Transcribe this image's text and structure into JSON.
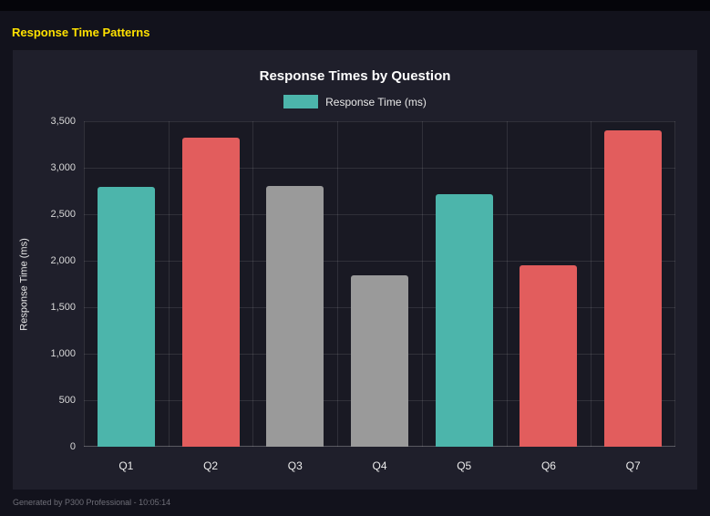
{
  "page": {
    "heading": "Response Time Patterns",
    "footer": "Generated by P300 Professional - 10:05:14"
  },
  "chart_data": {
    "type": "bar",
    "title": "Response Times by Question",
    "legend_label": "Response Time (ms)",
    "legend_color": "#4cb5ab",
    "legend_position": "top",
    "categories": [
      "Q1",
      "Q2",
      "Q3",
      "Q4",
      "Q5",
      "Q6",
      "Q7"
    ],
    "values": [
      2790,
      3320,
      2800,
      1840,
      2720,
      1950,
      3400
    ],
    "bar_colors": [
      "#4cb5ab",
      "#e25d5d",
      "#9a9a9a",
      "#9a9a9a",
      "#4cb5ab",
      "#e25d5d",
      "#e25d5d"
    ],
    "xlabel": "",
    "ylabel": "Response Time (ms)",
    "ylim": [
      0,
      3500
    ],
    "ytick_step": 500,
    "yticks": [
      "0",
      "500",
      "1,000",
      "1,500",
      "2,000",
      "2,500",
      "3,000",
      "3,500"
    ],
    "grid": true
  },
  "colors": {
    "heading_yellow": "#ffe100",
    "panel_background": "#1f1f2b",
    "page_background": "#12121c",
    "teal": "#4cb5ab",
    "red": "#e25d5d",
    "gray": "#9a9a9a"
  }
}
